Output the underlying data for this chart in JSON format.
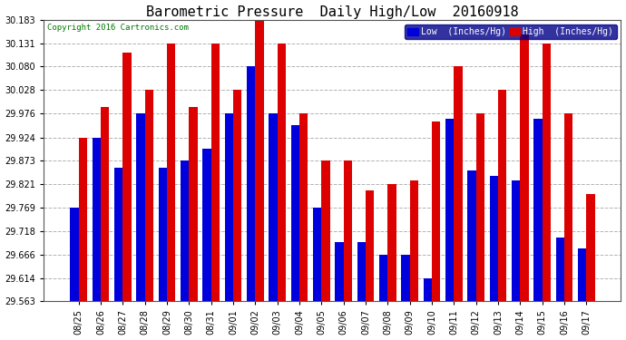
{
  "title": "Barometric Pressure  Daily High/Low  20160918",
  "copyright": "Copyright 2016 Cartronics.com",
  "legend_low_label": "Low  (Inches/Hg)",
  "legend_high_label": "High  (Inches/Hg)",
  "dates": [
    "08/25",
    "08/26",
    "08/27",
    "08/28",
    "08/29",
    "08/30",
    "08/31",
    "09/01",
    "09/02",
    "09/03",
    "09/04",
    "09/05",
    "09/06",
    "09/07",
    "09/08",
    "09/09",
    "09/10",
    "09/11",
    "09/12",
    "09/13",
    "09/14",
    "09/15",
    "09/16",
    "09/17"
  ],
  "low": [
    29.769,
    29.924,
    29.858,
    29.976,
    29.858,
    29.873,
    29.9,
    29.976,
    30.08,
    29.976,
    29.95,
    29.769,
    29.693,
    29.693,
    29.666,
    29.666,
    29.614,
    29.965,
    29.851,
    29.84,
    29.83,
    29.965,
    29.704,
    29.68
  ],
  "high": [
    29.924,
    29.99,
    30.111,
    30.028,
    30.131,
    29.99,
    30.131,
    30.028,
    30.183,
    30.131,
    29.976,
    29.873,
    29.873,
    29.808,
    29.821,
    29.83,
    29.958,
    30.08,
    29.976,
    30.028,
    30.15,
    30.131,
    29.976,
    29.8
  ],
  "ylim_min": 29.563,
  "ylim_max": 30.183,
  "yticks": [
    29.563,
    29.614,
    29.666,
    29.718,
    29.769,
    29.821,
    29.873,
    29.924,
    29.976,
    30.028,
    30.08,
    30.131,
    30.183
  ],
  "bar_width": 0.38,
  "low_color": "#0000dd",
  "high_color": "#dd0000",
  "bg_color": "#ffffff",
  "grid_color": "#aaaaaa",
  "title_fontsize": 11,
  "tick_fontsize": 7,
  "legend_fontsize": 7,
  "legend_bg": "#000088",
  "copyright_color": "#007700"
}
